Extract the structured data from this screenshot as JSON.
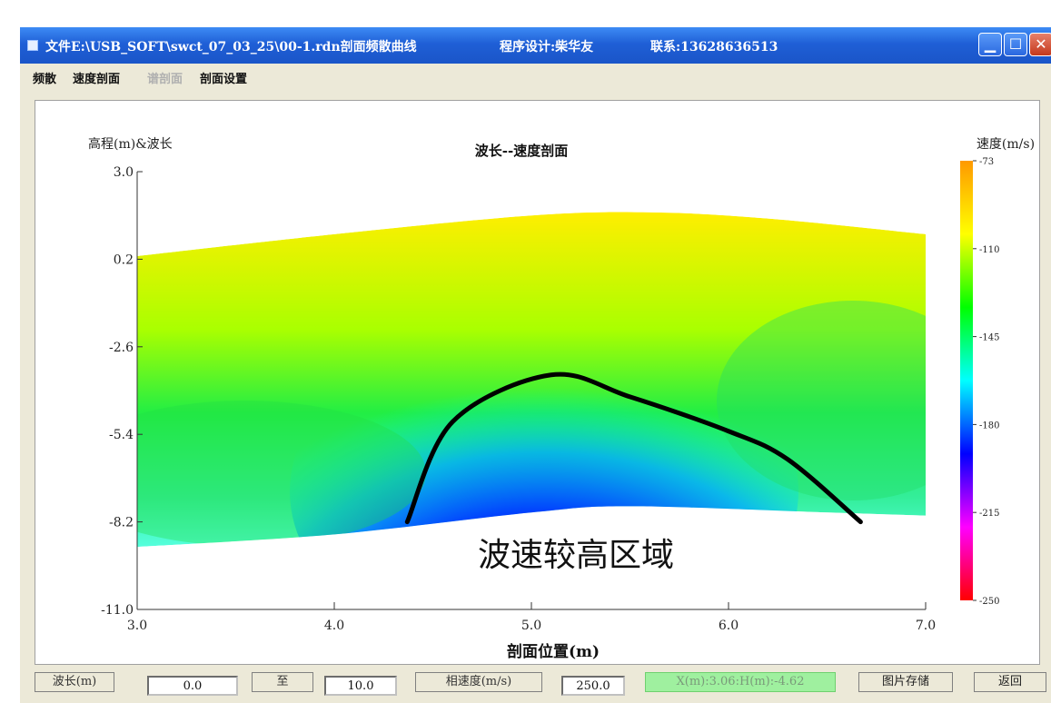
{
  "window": {
    "title": "文件E:\\USB_SOFT\\swct_07_03_25\\00-1.rdn剖面频散曲线",
    "designer": "程序设计:柴华友",
    "contact": "联系:13628636513"
  },
  "menu": [
    {
      "label": "频散",
      "enabled": true
    },
    {
      "label": "速度剖面",
      "enabled": true
    },
    {
      "label": "谱剖面",
      "enabled": false
    },
    {
      "label": "剖面设置",
      "enabled": true
    }
  ],
  "chart_data": {
    "type": "heatmap",
    "title": "波长--速度剖面",
    "xlabel": "剖面位置(m)",
    "ylabel": "高程(m)&波长",
    "x_ticks": [
      "3.0",
      "4.0",
      "5.0",
      "6.0",
      "7.0"
    ],
    "y_ticks": [
      "3.0",
      "0.2",
      "-2.6",
      "-5.4",
      "-8.2",
      "-11.0"
    ],
    "xlim": [
      3.0,
      7.0
    ],
    "ylim": [
      -11.0,
      3.0
    ],
    "colorbar": {
      "label": "速度(m/s)",
      "ticks": [
        "-73",
        "-110",
        "-145",
        "-180",
        "-215",
        "-250"
      ],
      "colors": [
        "#ff0000",
        "#ff00ff",
        "#0000ff",
        "#00ffff",
        "#00ff00",
        "#ffff00",
        "#ff9900"
      ]
    },
    "top_surface": [
      [
        3.0,
        0.3
      ],
      [
        4.0,
        1.0
      ],
      [
        5.0,
        1.6
      ],
      [
        5.6,
        1.7
      ],
      [
        6.2,
        1.5
      ],
      [
        7.0,
        1.0
      ]
    ],
    "bottom_surface": [
      [
        3.0,
        -9.0
      ],
      [
        4.0,
        -8.6
      ],
      [
        5.0,
        -7.9
      ],
      [
        5.5,
        -7.7
      ],
      [
        6.5,
        -7.9
      ],
      [
        7.0,
        -8.0
      ]
    ],
    "annotation": {
      "text": "波速较高区域",
      "curve": [
        [
          4.37,
          -8.2
        ],
        [
          4.6,
          -5.0
        ],
        [
          5.1,
          -3.5
        ],
        [
          5.5,
          -4.2
        ],
        [
          6.0,
          -5.3
        ],
        [
          6.3,
          -6.2
        ],
        [
          6.67,
          -8.2
        ]
      ]
    }
  },
  "statusbar": {
    "wavelength_label": "波长(m)",
    "from_value": "0.0",
    "to_label": "至",
    "to_value": "10.0",
    "phase_velocity_label": "相速度(m/s)",
    "phase_velocity_value": "250.0",
    "coord_readout": "X(m):3.06:H(m):-4.62",
    "save_image_button": "图片存储",
    "return_button": "返回"
  }
}
